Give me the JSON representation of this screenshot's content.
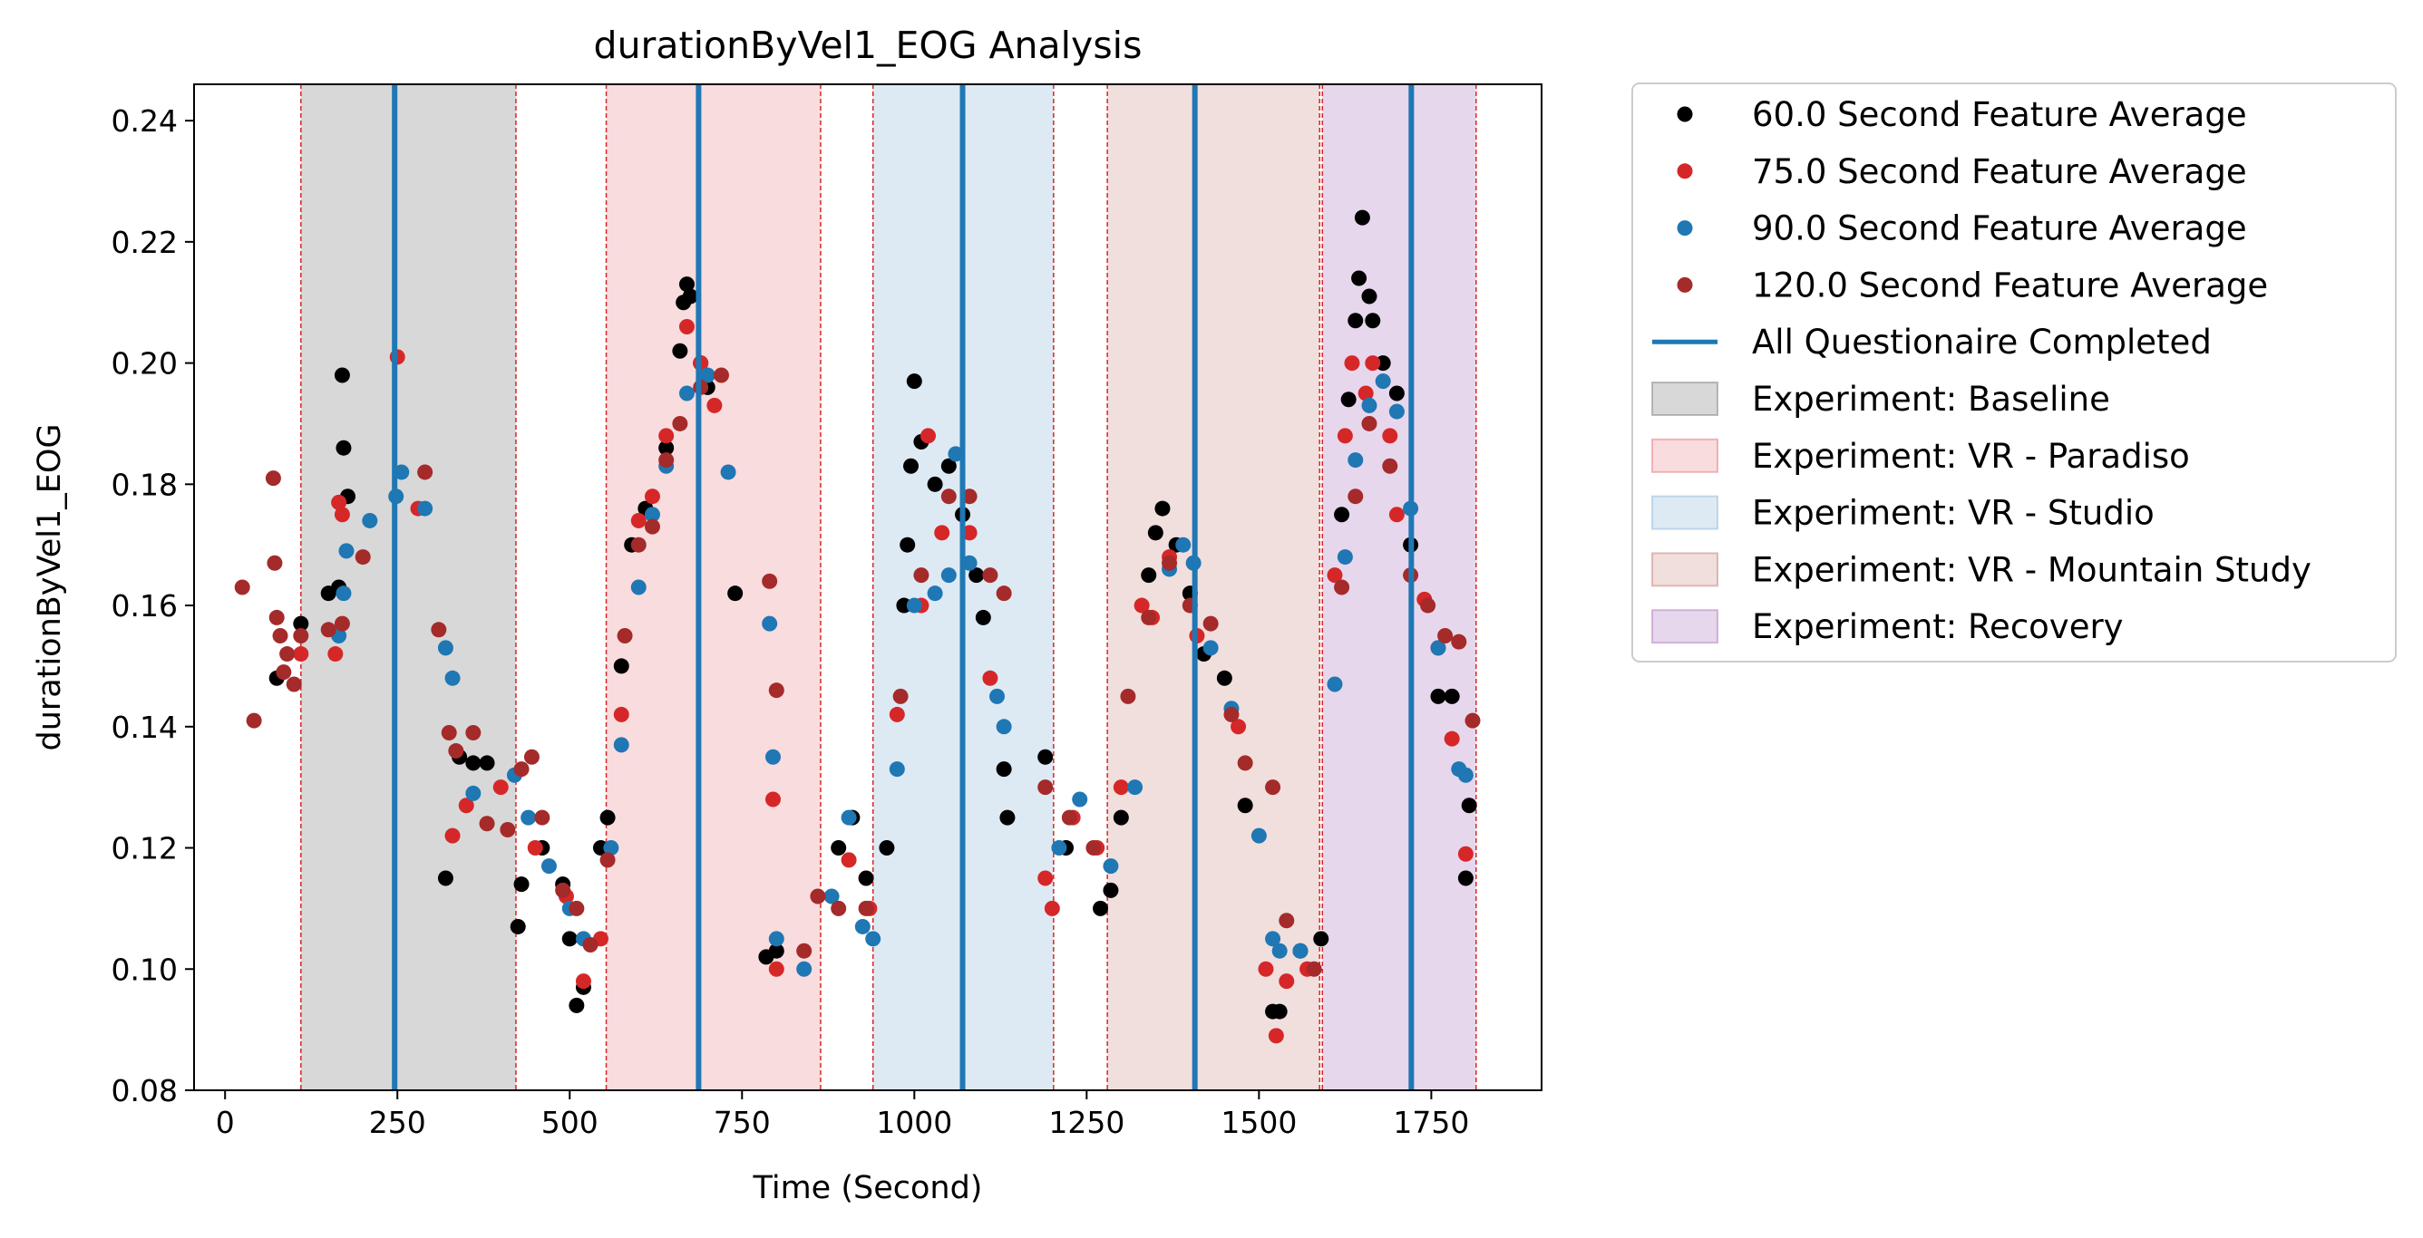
{
  "chart_data": {
    "type": "scatter",
    "title": "durationByVel1_EOG Analysis",
    "xlabel": "Time (Second)",
    "ylabel": "durationByVel1_EOG",
    "xlim": [
      -45,
      1910
    ],
    "ylim": [
      0.08,
      0.246
    ],
    "xticks": [
      0,
      250,
      500,
      750,
      1000,
      1250,
      1500,
      1750
    ],
    "yticks": [
      0.08,
      0.1,
      0.12,
      0.14,
      0.16,
      0.18,
      0.2,
      0.22,
      0.24
    ],
    "xtick_labels": [
      "0",
      "250",
      "500",
      "750",
      "1000",
      "1250",
      "1500",
      "1750"
    ],
    "ytick_labels": [
      "0.08",
      "0.10",
      "0.12",
      "0.14",
      "0.16",
      "0.18",
      "0.20",
      "0.22",
      "0.24"
    ],
    "grid": false,
    "legend_position": "outside-right",
    "experiments": [
      {
        "name": "Experiment: Baseline",
        "start": 110,
        "end": 422,
        "color": "#7f7f7f",
        "opacity": 0.3
      },
      {
        "name": "Experiment: VR - Paradiso",
        "start": 553,
        "end": 864,
        "color": "#e8747c",
        "opacity": 0.25
      },
      {
        "name": "Experiment: VR - Studio",
        "start": 940,
        "end": 1202,
        "color": "#8fb8dc",
        "opacity": 0.3
      },
      {
        "name": "Experiment: VR - Mountain Study",
        "start": 1280,
        "end": 1588,
        "color": "#c48078",
        "opacity": 0.25
      },
      {
        "name": "Experiment: Recovery",
        "start": 1592,
        "end": 1815,
        "color": "#b07cc0",
        "opacity": 0.3
      }
    ],
    "boundaries": [
      110,
      422,
      553,
      864,
      940,
      1202,
      1280,
      1588,
      1592,
      1815
    ],
    "questionnaire_line": {
      "name": "All Questionaire Completed",
      "color": "#1f77b4",
      "x": [
        246,
        687,
        1070,
        1407,
        1721
      ]
    },
    "series": [
      {
        "name": "60.0 Second Feature Average",
        "color": "#000000",
        "points": [
          [
            170,
            0.198
          ],
          [
            172,
            0.186
          ],
          [
            178,
            0.178
          ],
          [
            150,
            0.162
          ],
          [
            165,
            0.163
          ],
          [
            110,
            0.157
          ],
          [
            75,
            0.148
          ],
          [
            320,
            0.115
          ],
          [
            340,
            0.135
          ],
          [
            360,
            0.134
          ],
          [
            380,
            0.134
          ],
          [
            425,
            0.107
          ],
          [
            430,
            0.114
          ],
          [
            460,
            0.12
          ],
          [
            490,
            0.114
          ],
          [
            500,
            0.105
          ],
          [
            510,
            0.094
          ],
          [
            520,
            0.097
          ],
          [
            545,
            0.12
          ],
          [
            555,
            0.125
          ],
          [
            575,
            0.15
          ],
          [
            590,
            0.17
          ],
          [
            610,
            0.176
          ],
          [
            640,
            0.186
          ],
          [
            660,
            0.202
          ],
          [
            665,
            0.21
          ],
          [
            670,
            0.213
          ],
          [
            675,
            0.211
          ],
          [
            690,
            0.2
          ],
          [
            700,
            0.196
          ],
          [
            740,
            0.162
          ],
          [
            785,
            0.102
          ],
          [
            800,
            0.103
          ],
          [
            890,
            0.12
          ],
          [
            910,
            0.125
          ],
          [
            930,
            0.115
          ],
          [
            960,
            0.12
          ],
          [
            985,
            0.16
          ],
          [
            990,
            0.17
          ],
          [
            995,
            0.183
          ],
          [
            1000,
            0.197
          ],
          [
            1010,
            0.187
          ],
          [
            1030,
            0.18
          ],
          [
            1050,
            0.183
          ],
          [
            1070,
            0.175
          ],
          [
            1090,
            0.165
          ],
          [
            1100,
            0.158
          ],
          [
            1130,
            0.133
          ],
          [
            1135,
            0.125
          ],
          [
            1190,
            0.135
          ],
          [
            1220,
            0.12
          ],
          [
            1270,
            0.11
          ],
          [
            1285,
            0.113
          ],
          [
            1300,
            0.125
          ],
          [
            1340,
            0.165
          ],
          [
            1350,
            0.172
          ],
          [
            1360,
            0.176
          ],
          [
            1380,
            0.17
          ],
          [
            1400,
            0.162
          ],
          [
            1420,
            0.152
          ],
          [
            1450,
            0.148
          ],
          [
            1480,
            0.127
          ],
          [
            1520,
            0.093
          ],
          [
            1530,
            0.093
          ],
          [
            1560,
            0.103
          ],
          [
            1590,
            0.105
          ],
          [
            1620,
            0.175
          ],
          [
            1630,
            0.194
          ],
          [
            1640,
            0.207
          ],
          [
            1645,
            0.214
          ],
          [
            1650,
            0.224
          ],
          [
            1660,
            0.211
          ],
          [
            1665,
            0.207
          ],
          [
            1680,
            0.2
          ],
          [
            1700,
            0.195
          ],
          [
            1720,
            0.17
          ],
          [
            1760,
            0.145
          ],
          [
            1780,
            0.145
          ],
          [
            1800,
            0.115
          ],
          [
            1805,
            0.127
          ]
        ]
      },
      {
        "name": "75.0 Second Feature Average",
        "color": "#d62728",
        "points": [
          [
            160,
            0.152
          ],
          [
            165,
            0.177
          ],
          [
            170,
            0.175
          ],
          [
            110,
            0.152
          ],
          [
            250,
            0.201
          ],
          [
            280,
            0.176
          ],
          [
            330,
            0.122
          ],
          [
            350,
            0.127
          ],
          [
            400,
            0.13
          ],
          [
            450,
            0.12
          ],
          [
            495,
            0.112
          ],
          [
            520,
            0.098
          ],
          [
            545,
            0.105
          ],
          [
            575,
            0.142
          ],
          [
            600,
            0.174
          ],
          [
            620,
            0.178
          ],
          [
            640,
            0.188
          ],
          [
            670,
            0.206
          ],
          [
            690,
            0.2
          ],
          [
            710,
            0.193
          ],
          [
            795,
            0.128
          ],
          [
            800,
            0.1
          ],
          [
            905,
            0.118
          ],
          [
            935,
            0.11
          ],
          [
            975,
            0.142
          ],
          [
            1010,
            0.16
          ],
          [
            1020,
            0.188
          ],
          [
            1040,
            0.172
          ],
          [
            1080,
            0.172
          ],
          [
            1110,
            0.148
          ],
          [
            1190,
            0.115
          ],
          [
            1200,
            0.11
          ],
          [
            1230,
            0.125
          ],
          [
            1265,
            0.12
          ],
          [
            1300,
            0.13
          ],
          [
            1330,
            0.16
          ],
          [
            1345,
            0.158
          ],
          [
            1370,
            0.168
          ],
          [
            1410,
            0.155
          ],
          [
            1470,
            0.14
          ],
          [
            1510,
            0.1
          ],
          [
            1525,
            0.089
          ],
          [
            1540,
            0.098
          ],
          [
            1570,
            0.1
          ],
          [
            1610,
            0.165
          ],
          [
            1625,
            0.188
          ],
          [
            1635,
            0.2
          ],
          [
            1655,
            0.195
          ],
          [
            1665,
            0.2
          ],
          [
            1690,
            0.188
          ],
          [
            1700,
            0.175
          ],
          [
            1740,
            0.161
          ],
          [
            1760,
            0.153
          ],
          [
            1780,
            0.138
          ],
          [
            1800,
            0.119
          ]
        ]
      },
      {
        "name": "90.0 Second Feature Average",
        "color": "#1f77b4",
        "points": [
          [
            165,
            0.155
          ],
          [
            172,
            0.162
          ],
          [
            176,
            0.169
          ],
          [
            210,
            0.174
          ],
          [
            248,
            0.178
          ],
          [
            256,
            0.182
          ],
          [
            290,
            0.176
          ],
          [
            320,
            0.153
          ],
          [
            330,
            0.148
          ],
          [
            360,
            0.129
          ],
          [
            420,
            0.132
          ],
          [
            440,
            0.125
          ],
          [
            470,
            0.117
          ],
          [
            500,
            0.11
          ],
          [
            520,
            0.105
          ],
          [
            560,
            0.12
          ],
          [
            575,
            0.137
          ],
          [
            600,
            0.163
          ],
          [
            620,
            0.175
          ],
          [
            640,
            0.183
          ],
          [
            670,
            0.195
          ],
          [
            700,
            0.198
          ],
          [
            730,
            0.182
          ],
          [
            790,
            0.157
          ],
          [
            795,
            0.135
          ],
          [
            800,
            0.105
          ],
          [
            840,
            0.1
          ],
          [
            880,
            0.112
          ],
          [
            905,
            0.125
          ],
          [
            925,
            0.107
          ],
          [
            940,
            0.105
          ],
          [
            975,
            0.133
          ],
          [
            1000,
            0.16
          ],
          [
            1030,
            0.162
          ],
          [
            1050,
            0.165
          ],
          [
            1060,
            0.185
          ],
          [
            1080,
            0.167
          ],
          [
            1120,
            0.145
          ],
          [
            1130,
            0.14
          ],
          [
            1210,
            0.12
          ],
          [
            1240,
            0.128
          ],
          [
            1285,
            0.117
          ],
          [
            1320,
            0.13
          ],
          [
            1370,
            0.166
          ],
          [
            1390,
            0.17
          ],
          [
            1405,
            0.167
          ],
          [
            1430,
            0.153
          ],
          [
            1460,
            0.143
          ],
          [
            1500,
            0.122
          ],
          [
            1520,
            0.105
          ],
          [
            1530,
            0.103
          ],
          [
            1560,
            0.103
          ],
          [
            1610,
            0.147
          ],
          [
            1625,
            0.168
          ],
          [
            1640,
            0.184
          ],
          [
            1660,
            0.193
          ],
          [
            1680,
            0.197
          ],
          [
            1700,
            0.192
          ],
          [
            1720,
            0.176
          ],
          [
            1760,
            0.153
          ],
          [
            1790,
            0.133
          ],
          [
            1800,
            0.132
          ]
        ]
      },
      {
        "name": "120.0 Second Feature Average",
        "color": "#a52a2a",
        "points": [
          [
            25,
            0.163
          ],
          [
            42,
            0.141
          ],
          [
            70,
            0.181
          ],
          [
            72,
            0.167
          ],
          [
            75,
            0.158
          ],
          [
            80,
            0.155
          ],
          [
            85,
            0.149
          ],
          [
            90,
            0.152
          ],
          [
            100,
            0.147
          ],
          [
            110,
            0.155
          ],
          [
            150,
            0.156
          ],
          [
            170,
            0.157
          ],
          [
            200,
            0.168
          ],
          [
            290,
            0.182
          ],
          [
            310,
            0.156
          ],
          [
            325,
            0.139
          ],
          [
            335,
            0.136
          ],
          [
            360,
            0.139
          ],
          [
            380,
            0.124
          ],
          [
            410,
            0.123
          ],
          [
            430,
            0.133
          ],
          [
            445,
            0.135
          ],
          [
            460,
            0.125
          ],
          [
            490,
            0.113
          ],
          [
            510,
            0.11
          ],
          [
            530,
            0.104
          ],
          [
            555,
            0.118
          ],
          [
            580,
            0.155
          ],
          [
            600,
            0.17
          ],
          [
            620,
            0.173
          ],
          [
            640,
            0.184
          ],
          [
            660,
            0.19
          ],
          [
            690,
            0.196
          ],
          [
            720,
            0.198
          ],
          [
            790,
            0.164
          ],
          [
            800,
            0.146
          ],
          [
            840,
            0.103
          ],
          [
            860,
            0.112
          ],
          [
            890,
            0.11
          ],
          [
            930,
            0.11
          ],
          [
            980,
            0.145
          ],
          [
            1010,
            0.165
          ],
          [
            1050,
            0.178
          ],
          [
            1080,
            0.178
          ],
          [
            1110,
            0.165
          ],
          [
            1130,
            0.162
          ],
          [
            1190,
            0.13
          ],
          [
            1225,
            0.125
          ],
          [
            1260,
            0.12
          ],
          [
            1310,
            0.145
          ],
          [
            1340,
            0.158
          ],
          [
            1370,
            0.167
          ],
          [
            1400,
            0.16
          ],
          [
            1430,
            0.157
          ],
          [
            1460,
            0.142
          ],
          [
            1480,
            0.134
          ],
          [
            1520,
            0.13
          ],
          [
            1540,
            0.108
          ],
          [
            1580,
            0.1
          ],
          [
            1620,
            0.163
          ],
          [
            1640,
            0.178
          ],
          [
            1660,
            0.19
          ],
          [
            1690,
            0.183
          ],
          [
            1720,
            0.165
          ],
          [
            1745,
            0.16
          ],
          [
            1770,
            0.155
          ],
          [
            1790,
            0.154
          ],
          [
            1810,
            0.141
          ]
        ]
      }
    ]
  }
}
